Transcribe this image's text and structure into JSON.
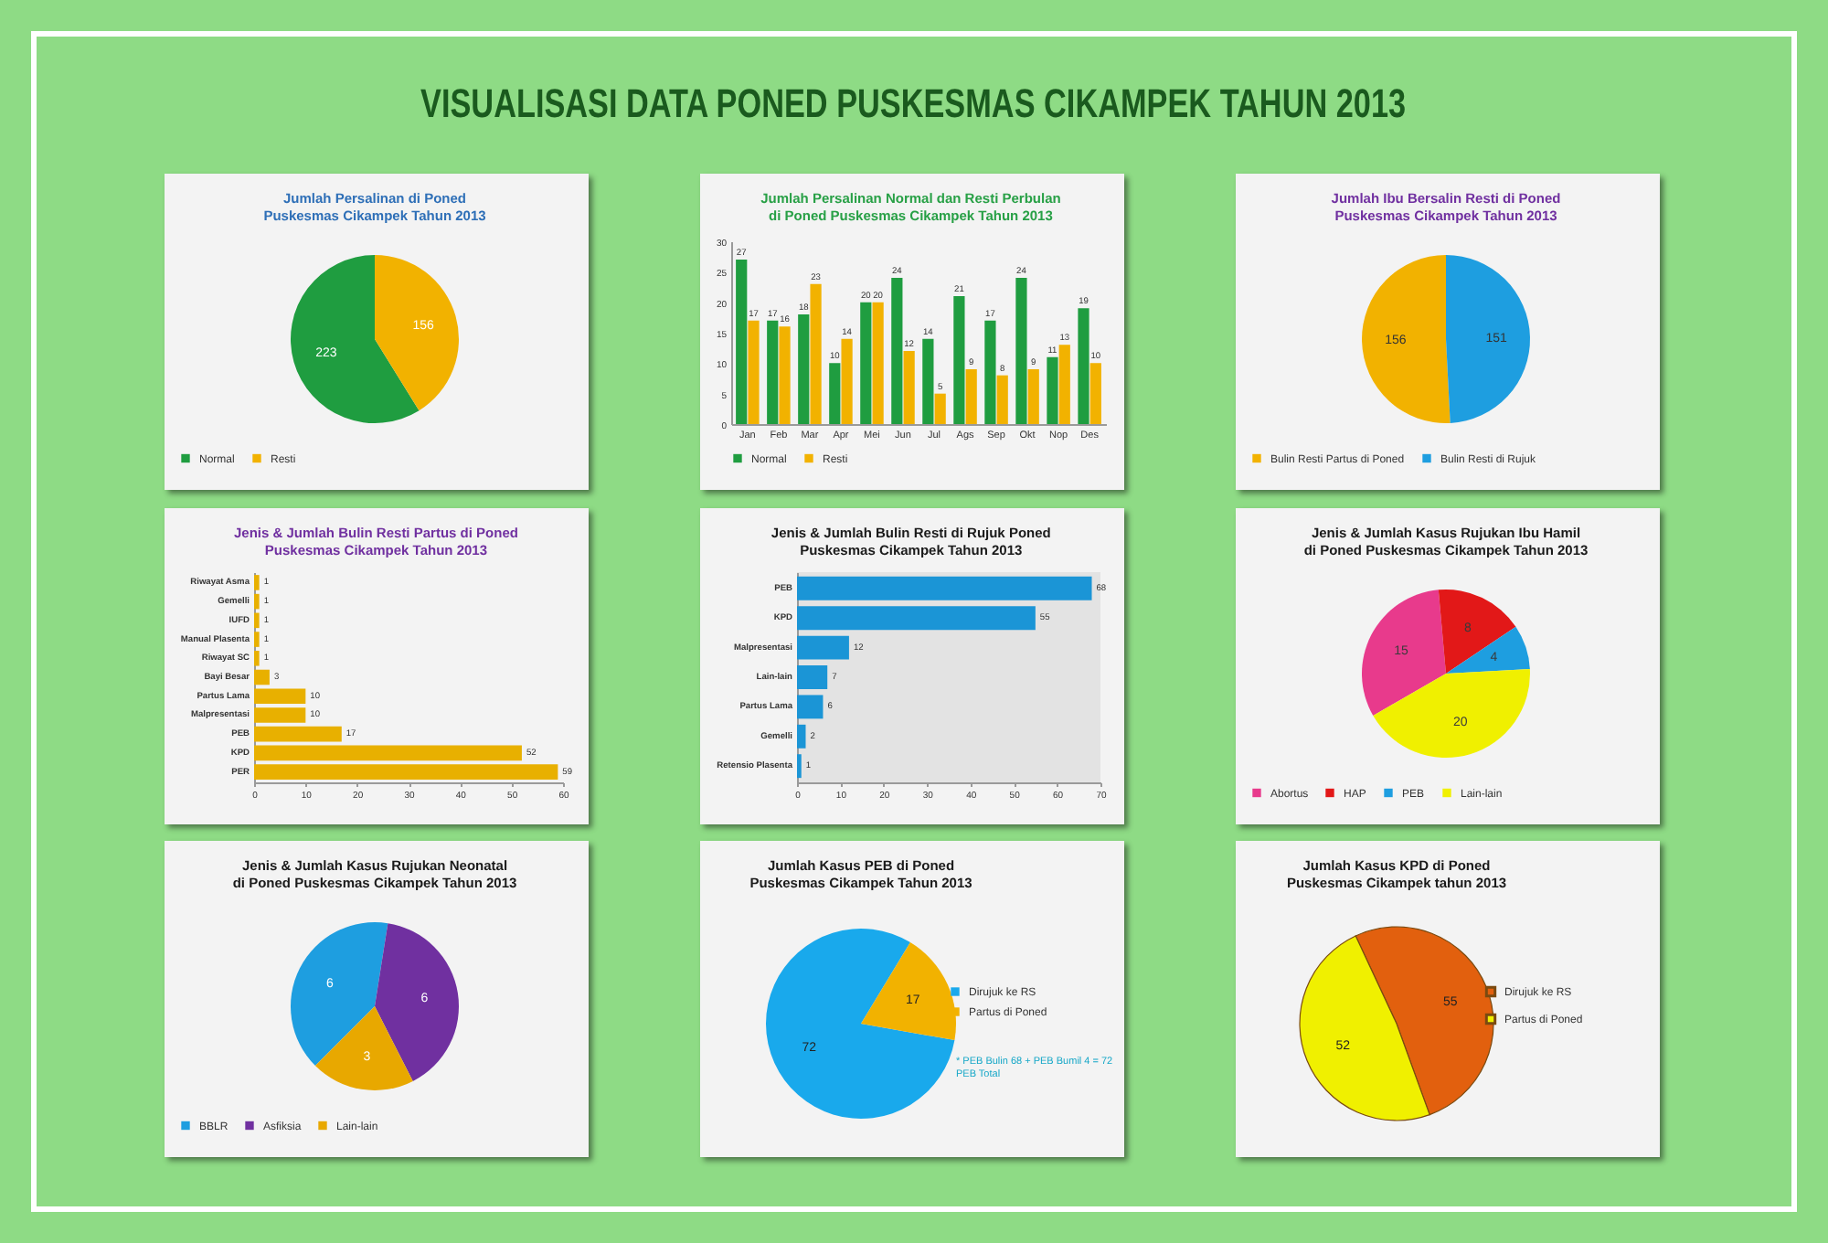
{
  "chart_data": [
    {
      "type": "other",
      "title": "VISUALISASI DATA PONED PUSKESMAS CIKAMPEK TAHUN 2013"
    },
    {
      "type": "pie",
      "title": "Jumlah Persalinan di Poned\nPuskesmas Cikampek Tahun 2013",
      "categories": [
        "Normal",
        "Resti"
      ],
      "values": [
        223,
        156
      ],
      "colors": [
        "#1f9d40",
        "#f2b200"
      ],
      "data_labels": true,
      "legend": "bottom"
    },
    {
      "type": "bar",
      "title": "Jumlah Persalinan Normal dan Resti Perbulan\ndi Poned Puskesmas Cikampek Tahun 2013",
      "categories": [
        "Jan",
        "Feb",
        "Mar",
        "Apr",
        "Mei",
        "Jun",
        "Jul",
        "Ags",
        "Sep",
        "Okt",
        "Nop",
        "Des"
      ],
      "series": [
        {
          "name": "Normal",
          "color": "#1f9d40",
          "values": [
            27,
            17,
            18,
            10,
            20,
            24,
            14,
            21,
            17,
            24,
            11,
            19
          ]
        },
        {
          "name": "Resti",
          "color": "#f2b200",
          "values": [
            17,
            16,
            23,
            14,
            20,
            12,
            5,
            9,
            8,
            9,
            13,
            10
          ]
        }
      ],
      "ylim": [
        0,
        30
      ],
      "yticks": [
        0,
        5,
        10,
        15,
        20,
        25,
        30
      ],
      "data_labels": true,
      "legend": "bottom"
    },
    {
      "type": "pie",
      "title": "Jumlah Ibu Bersalin Resti di Poned\nPuskesmas Cikampek Tahun 2013",
      "categories": [
        "Bulin Resti Partus di Poned",
        "Bulin Resti di Rujuk"
      ],
      "values": [
        156,
        151
      ],
      "colors": [
        "#f2b200",
        "#1e9ee0"
      ],
      "data_labels": true,
      "legend": "bottom"
    },
    {
      "type": "bar",
      "orientation": "horizontal",
      "title": "Jenis & Jumlah Bulin Resti Partus di Poned\nPuskesmas Cikampek Tahun 2013",
      "categories": [
        "Riwayat Asma",
        "Gemelli",
        "IUFD",
        "Manual Plasenta",
        "Riwayat SC",
        "Bayi Besar",
        "Partus Lama",
        "Malpresentasi",
        "PEB",
        "KPD",
        "PER"
      ],
      "values": [
        1,
        1,
        1,
        1,
        1,
        3,
        10,
        10,
        17,
        52,
        59
      ],
      "color": "#e8b000",
      "xlim": [
        0,
        60
      ],
      "xticks": [
        0,
        10,
        20,
        30,
        40,
        50,
        60
      ],
      "data_labels": true
    },
    {
      "type": "bar",
      "orientation": "horizontal",
      "title": "Jenis & Jumlah Bulin Resti di Rujuk Poned\nPuskesmas Cikampek Tahun 2013",
      "categories": [
        "PEB",
        "KPD",
        "Malpresentasi",
        "Lain-lain",
        "Partus Lama",
        "Gemelli",
        "Retensio Plasenta"
      ],
      "values": [
        68,
        55,
        12,
        7,
        6,
        2,
        1
      ],
      "color": "#1b95d6",
      "xlim": [
        0,
        70
      ],
      "xticks": [
        0,
        10,
        20,
        30,
        40,
        50,
        60,
        70
      ],
      "data_labels": true
    },
    {
      "type": "pie",
      "title": "Jenis & Jumlah Kasus Rujukan Ibu Hamil\ndi Poned Puskesmas Cikampek Tahun 2013",
      "categories": [
        "Abortus",
        "HAP",
        "PEB",
        "Lain-lain"
      ],
      "values": [
        15,
        8,
        4,
        20
      ],
      "colors": [
        "#e83a8c",
        "#e21818",
        "#1e9ee0",
        "#f0f000"
      ],
      "data_labels": true,
      "legend": "bottom"
    },
    {
      "type": "pie",
      "title": "Jenis & Jumlah Kasus Rujukan Neonatal\ndi Poned Puskesmas Cikampek Tahun 2013",
      "categories": [
        "BBLR",
        "Asfiksia",
        "Lain-lain"
      ],
      "values": [
        6,
        6,
        3
      ],
      "colors": [
        "#1e9ee0",
        "#7030a0",
        "#e8a800"
      ],
      "data_labels": true,
      "legend": "bottom"
    },
    {
      "type": "pie",
      "title": "Jumlah Kasus PEB di Poned\nPuskesmas Cikampek Tahun 2013",
      "categories": [
        "Dirujuk ke RS",
        "Partus di Poned"
      ],
      "values": [
        72,
        17
      ],
      "colors": [
        "#19a9ec",
        "#f2b200"
      ],
      "data_labels": true,
      "legend": "right",
      "annotations": [
        "* PEB Bulin 68 + PEB Bumil 4 = 72 PEB Total"
      ]
    },
    {
      "type": "pie",
      "title": "Jumlah Kasus KPD di Poned\nPuskesmas Cikampek tahun 2013",
      "categories": [
        "Dirujuk ke RS",
        "Partus di Poned"
      ],
      "values": [
        55,
        52
      ],
      "colors": [
        "#e2600e",
        "#f0f000"
      ],
      "data_labels": true,
      "legend": "right"
    }
  ]
}
